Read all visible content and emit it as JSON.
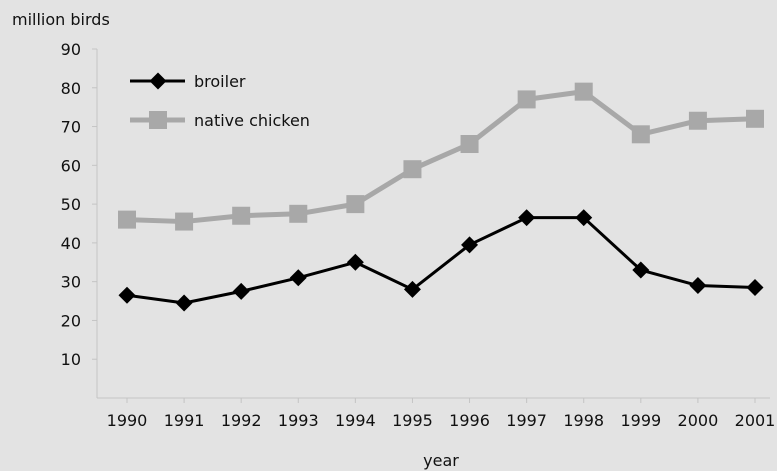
{
  "chart_data": {
    "type": "line",
    "title": "",
    "ylabel": "million birds",
    "xlabel": "year",
    "ylim": [
      0,
      90
    ],
    "yticks": [
      10,
      20,
      30,
      40,
      50,
      60,
      70,
      80,
      90
    ],
    "categories": [
      "1990",
      "1991",
      "1992",
      "1993",
      "1994",
      "1995",
      "1996",
      "1997",
      "1998",
      "1999",
      "2000",
      "2001"
    ],
    "series": [
      {
        "name": "broiler",
        "color": "#000000",
        "marker": "diamond",
        "values": [
          26.5,
          24.5,
          27.5,
          31,
          35,
          28,
          39.5,
          46.5,
          46.5,
          33,
          29,
          28.5
        ]
      },
      {
        "name": "native chicken",
        "color": "#a8a8a8",
        "marker": "square",
        "values": [
          46,
          45.5,
          47,
          47.5,
          50,
          59,
          65.5,
          77,
          79,
          68,
          71.5,
          72
        ]
      }
    ],
    "legend": "top-left",
    "grid": false
  }
}
